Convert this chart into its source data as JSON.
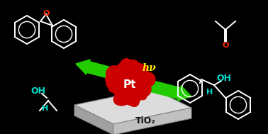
{
  "background_color": "#000000",
  "tio2_top_color": "#dcdcdc",
  "tio2_left_color": "#a0a0a0",
  "tio2_front_color": "#c0c0c0",
  "tio2_label": "TiO₂",
  "tio2_label_color": "#111111",
  "pt_color": "#cc0000",
  "pt_label": "Pt",
  "pt_label_color": "#ffffff",
  "arrow_color": "#22cc00",
  "hv_color": "#ffee00",
  "hv_label": "hν",
  "molecule_color": "#ffffff",
  "oxygen_color": "#ff2200",
  "oh_color": "#00ddcc",
  "fig_width": 3.78,
  "fig_height": 1.89,
  "dpi": 100
}
